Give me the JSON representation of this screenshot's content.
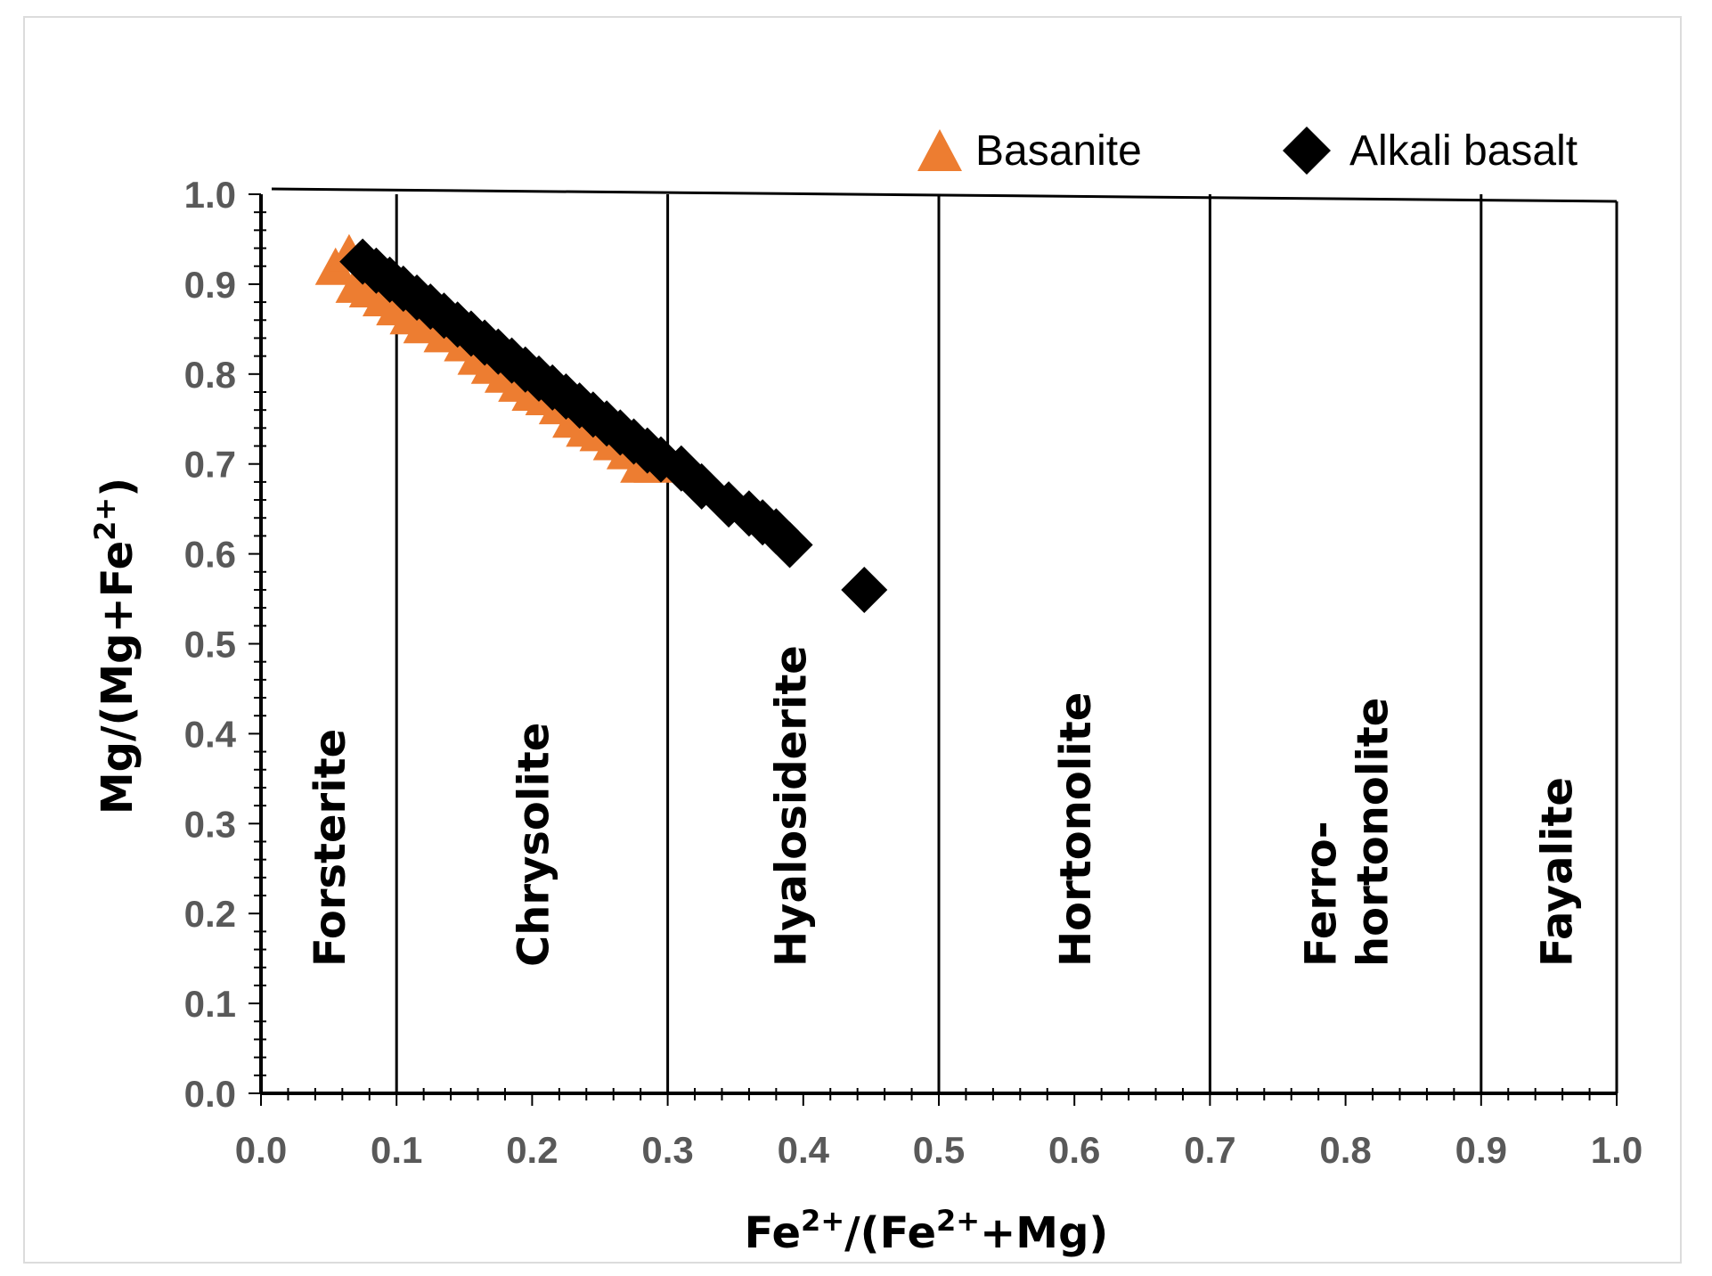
{
  "chart_data": {
    "type": "scatter",
    "xlabel": {
      "base": "Fe",
      "sup": "2+",
      "mid": "/(Fe",
      "sup2": "2+",
      "end": "+Mg)"
    },
    "ylabel": {
      "base": "Mg/(Mg+Fe",
      "sup": "2+",
      "end": ")"
    },
    "xlim": [
      0.0,
      1.0
    ],
    "ylim": [
      0.0,
      1.0
    ],
    "x_ticks": [
      "0.0",
      "0.1",
      "0.2",
      "0.3",
      "0.4",
      "0.5",
      "0.6",
      "0.7",
      "0.8",
      "0.9",
      "1.0"
    ],
    "y_ticks": [
      "0.0",
      "0.1",
      "0.2",
      "0.3",
      "0.4",
      "0.5",
      "0.6",
      "0.7",
      "0.8",
      "0.9",
      "1.0"
    ],
    "boundaries": [
      0.1,
      0.3,
      0.5,
      0.7,
      0.9
    ],
    "regions": [
      {
        "lines": [
          "Forsterite"
        ],
        "x": 0.05
      },
      {
        "lines": [
          "Chrysolite"
        ],
        "x": 0.2
      },
      {
        "lines": [
          "Hyalosiderite"
        ],
        "x": 0.39
      },
      {
        "lines": [
          "Hortonolite"
        ],
        "x": 0.6
      },
      {
        "lines": [
          "Ferro-",
          "hortonolite"
        ],
        "x": 0.8
      },
      {
        "lines": [
          "Fayalite"
        ],
        "x": 0.955
      }
    ],
    "legend_position": "top-right",
    "series": [
      {
        "name": "Basanite",
        "marker": "triangle",
        "color": "#ED7D31",
        "points": [
          [
            0.055,
            0.92
          ],
          [
            0.065,
            0.935
          ],
          [
            0.07,
            0.9
          ],
          [
            0.08,
            0.895
          ],
          [
            0.09,
            0.885
          ],
          [
            0.1,
            0.875
          ],
          [
            0.11,
            0.865
          ],
          [
            0.12,
            0.855
          ],
          [
            0.135,
            0.845
          ],
          [
            0.15,
            0.835
          ],
          [
            0.16,
            0.82
          ],
          [
            0.17,
            0.81
          ],
          [
            0.18,
            0.8
          ],
          [
            0.19,
            0.79
          ],
          [
            0.2,
            0.78
          ],
          [
            0.21,
            0.775
          ],
          [
            0.22,
            0.765
          ],
          [
            0.23,
            0.75
          ],
          [
            0.24,
            0.74
          ],
          [
            0.25,
            0.735
          ],
          [
            0.26,
            0.725
          ],
          [
            0.27,
            0.715
          ],
          [
            0.28,
            0.7
          ],
          [
            0.29,
            0.7
          ]
        ]
      },
      {
        "name": "Alkali basalt",
        "marker": "diamond",
        "color": "#000000",
        "points": [
          [
            0.075,
            0.925
          ],
          [
            0.085,
            0.915
          ],
          [
            0.095,
            0.905
          ],
          [
            0.105,
            0.895
          ],
          [
            0.115,
            0.885
          ],
          [
            0.125,
            0.875
          ],
          [
            0.135,
            0.865
          ],
          [
            0.145,
            0.855
          ],
          [
            0.155,
            0.845
          ],
          [
            0.165,
            0.835
          ],
          [
            0.175,
            0.825
          ],
          [
            0.185,
            0.815
          ],
          [
            0.195,
            0.805
          ],
          [
            0.205,
            0.795
          ],
          [
            0.215,
            0.785
          ],
          [
            0.225,
            0.775
          ],
          [
            0.235,
            0.765
          ],
          [
            0.245,
            0.755
          ],
          [
            0.255,
            0.745
          ],
          [
            0.265,
            0.735
          ],
          [
            0.275,
            0.725
          ],
          [
            0.285,
            0.715
          ],
          [
            0.295,
            0.705
          ],
          [
            0.31,
            0.695
          ],
          [
            0.325,
            0.675
          ],
          [
            0.345,
            0.655
          ],
          [
            0.36,
            0.645
          ],
          [
            0.37,
            0.635
          ],
          [
            0.38,
            0.625
          ],
          [
            0.39,
            0.61
          ],
          [
            0.445,
            0.56
          ]
        ]
      }
    ]
  }
}
